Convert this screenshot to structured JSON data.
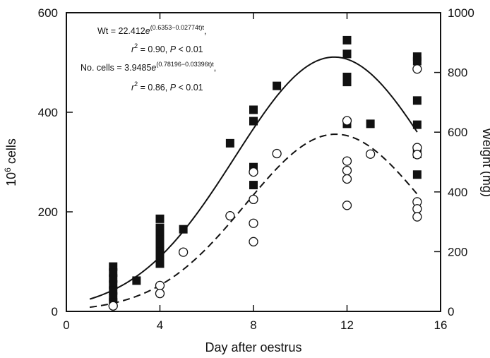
{
  "chart_data": {
    "type": "scatter",
    "title": "",
    "xlabel": "Day after oestrus",
    "ylabel_left": "10",
    "ylabel_left_sup": "6",
    "ylabel_left_suffix": " cells",
    "ylabel_right": "Weight (mg)",
    "xlim": [
      0,
      16
    ],
    "ylim_left": [
      0,
      600
    ],
    "ylim_right": [
      0,
      1000
    ],
    "x_ticks": [
      0,
      4,
      8,
      12,
      16
    ],
    "x_tick_labels": [
      "0",
      "4",
      "8",
      "12",
      "16"
    ],
    "y_left_ticks": [
      0,
      200,
      400,
      600
    ],
    "y_left_tick_labels": [
      "0",
      "200",
      "400",
      "600"
    ],
    "y_right_ticks": [
      0,
      200,
      400,
      600,
      800,
      1000
    ],
    "y_right_tick_labels": [
      "0",
      "200",
      "400",
      "600",
      "800",
      "1000"
    ],
    "grid": false,
    "annotations": {
      "wt_eq": {
        "prefix": "Wt = 22.412",
        "e": "e",
        "exp": "(0.6353−0.02774t)t",
        "tail": ","
      },
      "wt_fit": {
        "r": "r",
        "two": "2",
        "mid": " = 0.90, ",
        "p": "P",
        "tail": " < 0.01"
      },
      "cells_eq": {
        "prefix": "No. cells = 3.9485",
        "e": "e",
        "exp": "(0.78196−0.03396t)t",
        "tail": ","
      },
      "cells_fit": {
        "r": "r",
        "two": "2",
        "mid": " = 0.86, ",
        "p": "P",
        "tail": " < 0.01"
      }
    },
    "series": [
      {
        "axis": "right",
        "marker": "filled-square",
        "points": [
          [
            2,
            150
          ],
          [
            2,
            130
          ],
          [
            2,
            110
          ],
          [
            2,
            90
          ],
          [
            2,
            70
          ],
          [
            2,
            50
          ],
          [
            2,
            30
          ],
          [
            3,
            103
          ],
          [
            4,
            310
          ],
          [
            4,
            280
          ],
          [
            4,
            260
          ],
          [
            4,
            240
          ],
          [
            4,
            220
          ],
          [
            4,
            200
          ],
          [
            4,
            180
          ],
          [
            4,
            160
          ],
          [
            5,
            275
          ],
          [
            7,
            563
          ],
          [
            8,
            675
          ],
          [
            8,
            637
          ],
          [
            8,
            483
          ],
          [
            8,
            423
          ],
          [
            9,
            755
          ],
          [
            12,
            908
          ],
          [
            12,
            862
          ],
          [
            12,
            785
          ],
          [
            12,
            768
          ],
          [
            12,
            628
          ],
          [
            13,
            628
          ],
          [
            15,
            853
          ],
          [
            15,
            838
          ],
          [
            15,
            706
          ],
          [
            15,
            625
          ],
          [
            15,
            538
          ],
          [
            15,
            527
          ],
          [
            15,
            458
          ]
        ]
      },
      {
        "axis": "left",
        "marker": "open-circle",
        "points": [
          [
            2,
            11
          ],
          [
            4,
            52
          ],
          [
            4,
            36
          ],
          [
            5,
            119
          ],
          [
            7,
            192
          ],
          [
            8,
            280
          ],
          [
            8,
            225
          ],
          [
            8,
            177
          ],
          [
            8,
            140
          ],
          [
            9,
            317
          ],
          [
            12,
            383
          ],
          [
            12,
            302
          ],
          [
            12,
            283
          ],
          [
            12,
            266
          ],
          [
            12,
            213
          ],
          [
            13,
            316
          ],
          [
            15,
            487
          ],
          [
            15,
            329
          ],
          [
            15,
            315
          ],
          [
            15,
            220
          ],
          [
            15,
            206
          ],
          [
            15,
            190
          ]
        ]
      }
    ],
    "fits": [
      {
        "axis": "right",
        "style": "solid",
        "a": 22.412,
        "b": 0.6353,
        "c": 0.02774
      },
      {
        "axis": "left",
        "style": "dashed",
        "a": 3.9485,
        "b": 0.78196,
        "c": 0.03396
      }
    ]
  }
}
